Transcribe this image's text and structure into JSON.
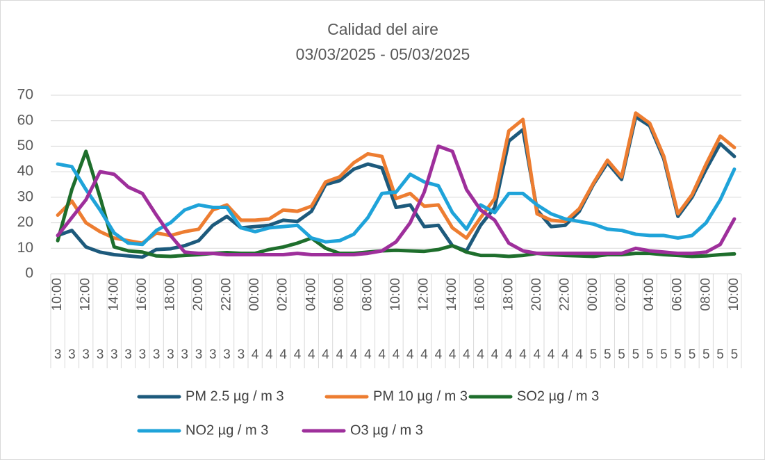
{
  "chart_data": {
    "type": "line",
    "title": "Calidad del aire",
    "subtitle": "03/03/2025 - 05/03/2025",
    "categories": [
      "10:00",
      null,
      "12:00",
      null,
      "14:00",
      null,
      "16:00",
      null,
      "18:00",
      null,
      "20:00",
      null,
      "22:00",
      null,
      "00:00",
      null,
      "02:00",
      null,
      "04:00",
      null,
      "06:00",
      null,
      "08:00",
      null,
      "10:00",
      null,
      "12:00",
      null,
      "14:00",
      null,
      "16:00",
      null,
      "18:00",
      null,
      "20:00",
      null,
      "22:00",
      null,
      "00:00",
      null,
      "02:00",
      null,
      "04:00",
      null,
      "06:00",
      null,
      "08:00",
      null,
      "10:00"
    ],
    "days": [
      "3",
      "3",
      "3",
      "3",
      "3",
      "3",
      "3",
      "3",
      "3",
      "3",
      "3",
      "3",
      "3",
      "3",
      "4",
      "4",
      "4",
      "4",
      "4",
      "4",
      "4",
      "4",
      "4",
      "4",
      "4",
      "4",
      "4",
      "4",
      "4",
      "4",
      "4",
      "4",
      "4",
      "4",
      "4",
      "4",
      "4",
      "4",
      "5",
      "5",
      "5",
      "5",
      "5",
      "5",
      "5",
      "5",
      "5",
      "5",
      "5"
    ],
    "series": [
      {
        "name": "PM 2.5 µg / m 3",
        "color": "#1d5a7c",
        "values": [
          15,
          17,
          10.5,
          8.5,
          7.5,
          7,
          6.5,
          9.5,
          9.8,
          11,
          13,
          19,
          22.5,
          18,
          18.5,
          19,
          21,
          20.5,
          24.5,
          35,
          36.5,
          41,
          43,
          41.5,
          26,
          27,
          18.5,
          19,
          11,
          9,
          19,
          26,
          52,
          56.5,
          25,
          18.5,
          19,
          24.5,
          35,
          43.5,
          37,
          61.5,
          58,
          45,
          22.5,
          30,
          41,
          51,
          46
        ]
      },
      {
        "name": "PM 10 µg / m 3",
        "color": "#ed7d31",
        "values": [
          23,
          28.5,
          20,
          16.5,
          14,
          13,
          12,
          16,
          15,
          16.5,
          17.5,
          25,
          27,
          21,
          21,
          21.5,
          25,
          24.5,
          26.5,
          36,
          38,
          43.5,
          47,
          46,
          29.5,
          31.5,
          26.5,
          27,
          18,
          14,
          22,
          29.5,
          56,
          60.5,
          23.5,
          21,
          20.5,
          25.5,
          35.5,
          44.5,
          38,
          63,
          59,
          46,
          23.5,
          31,
          43,
          54,
          49.5
        ]
      },
      {
        "name": "SO2 µg / m 3",
        "color": "#1e6e2c",
        "values": [
          13,
          33,
          48,
          30,
          10.5,
          9,
          8.5,
          7,
          6.8,
          7.2,
          7.5,
          8,
          8.3,
          8,
          8,
          9.5,
          10.5,
          12,
          14,
          10,
          8,
          8,
          8.5,
          9,
          9.2,
          9,
          8.8,
          9.5,
          11,
          8.5,
          7.2,
          7.2,
          6.8,
          7.2,
          8,
          7.5,
          7.2,
          7,
          6.8,
          7.5,
          7.5,
          8,
          8,
          7.5,
          7.2,
          6.8,
          7,
          7.5,
          7.8
        ]
      },
      {
        "name": "NO2 µg / m 3",
        "color": "#1fa3d9",
        "values": [
          43,
          42,
          33,
          25,
          16,
          12,
          11.5,
          17,
          20,
          25,
          27,
          26,
          26,
          18,
          16.5,
          18,
          18.5,
          19,
          14,
          12.5,
          13,
          15.5,
          22,
          31.5,
          32,
          39,
          36,
          34.5,
          24,
          17.5,
          27,
          24,
          31.5,
          31.5,
          27,
          23.5,
          21.5,
          20.5,
          19.5,
          17.5,
          17,
          15.5,
          15,
          15,
          14,
          15,
          20,
          29,
          41
        ]
      },
      {
        "name": "O3 µg / m 3",
        "color": "#9e2f9b",
        "values": [
          15,
          22,
          29,
          40,
          39,
          34,
          31.5,
          23,
          15,
          8.5,
          8,
          8,
          7.5,
          7.5,
          7.5,
          7.5,
          7.5,
          8,
          7.5,
          7.5,
          7.5,
          7.5,
          8,
          9,
          12.5,
          20,
          32,
          50,
          48,
          33,
          25,
          21,
          12,
          9,
          8,
          8,
          8,
          8,
          8,
          8,
          8,
          10,
          9,
          8.5,
          8,
          8,
          8.5,
          11.5,
          21.5
        ]
      }
    ],
    "ylim": [
      0,
      70
    ],
    "yticks": [
      0,
      10,
      20,
      30,
      40,
      50,
      60,
      70
    ],
    "grid": true
  }
}
